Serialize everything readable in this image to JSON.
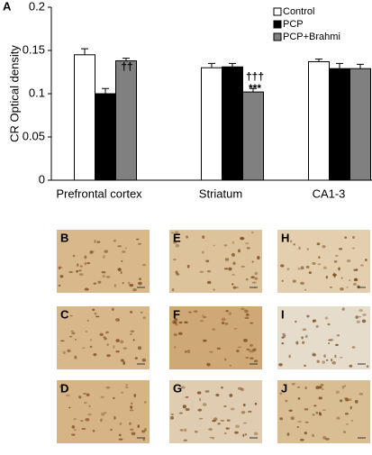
{
  "chart_data": {
    "type": "bar",
    "panel_label": "A",
    "ylabel": "CR Optical density",
    "categories": [
      "Prefrontal cortex",
      "Striatum",
      "CA1-3"
    ],
    "series": [
      {
        "name": "Control",
        "color": "#ffffff",
        "values": [
          0.145,
          0.13,
          0.137
        ],
        "errors": [
          0.007,
          0.005,
          0.003
        ]
      },
      {
        "name": "PCP",
        "color": "#000000",
        "values": [
          0.1,
          0.131,
          0.129
        ],
        "errors": [
          0.006,
          0.004,
          0.006
        ]
      },
      {
        "name": "PCP+Brahmi",
        "color": "#808080",
        "values": [
          0.138,
          0.102,
          0.129
        ],
        "errors": [
          0.003,
          0.004,
          0.005
        ]
      }
    ],
    "ylim": [
      0,
      0.2
    ],
    "yticks": [
      0,
      0.05,
      0.1,
      0.15,
      0.2
    ],
    "annotations": [
      "***",
      "††",
      "†††",
      "***"
    ]
  },
  "panels": [
    "B",
    "E",
    "H",
    "C",
    "F",
    "I",
    "D",
    "G",
    "J"
  ]
}
